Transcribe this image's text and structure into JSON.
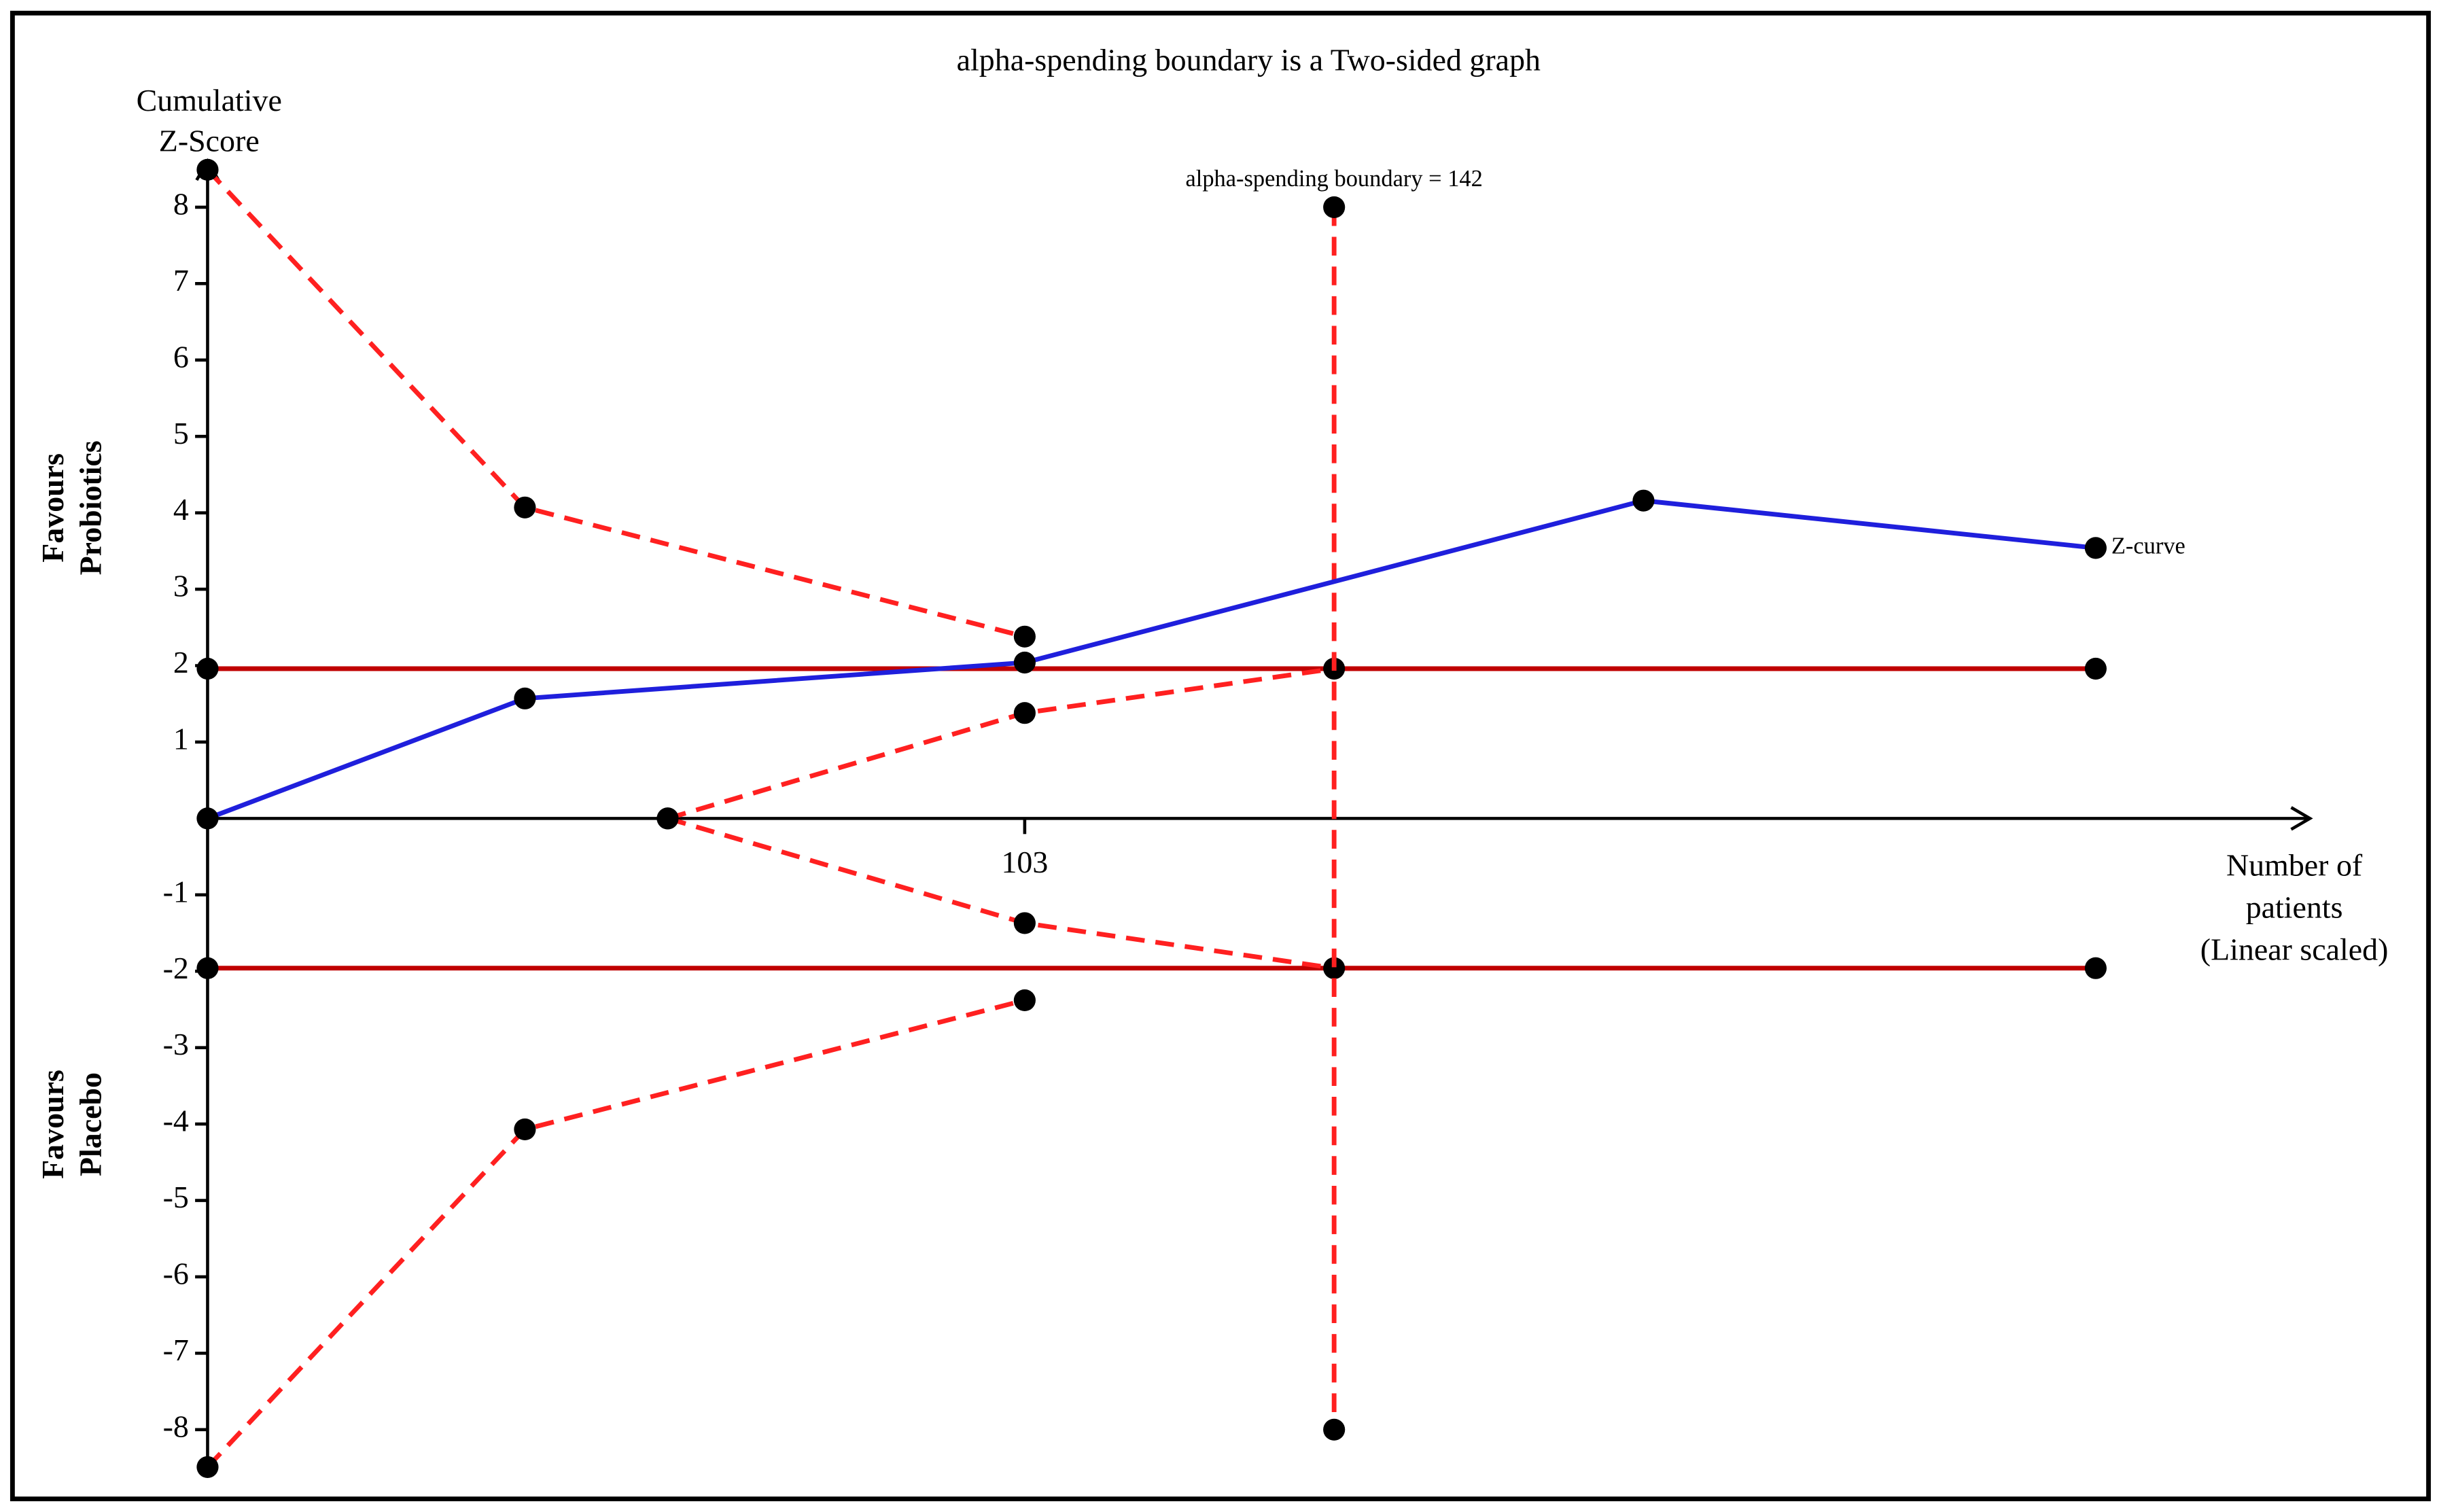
{
  "chart_data": {
    "type": "line",
    "title": "alpha-spending boundary is a Two-sided graph",
    "y_label": [
      "Cumulative",
      "Z-Score"
    ],
    "x_label": [
      "Number of",
      "patients",
      "(Linear scaled)"
    ],
    "upper_side_label": [
      "Favours",
      "Probiotics"
    ],
    "lower_side_label": [
      "Favours",
      "Placebo"
    ],
    "annotation": "alpha-spending boundary = 142",
    "xlim": [
      0,
      265
    ],
    "xticks": [
      103
    ],
    "ylim": [
      -8.6,
      8.6
    ],
    "yticks": [
      -8,
      -7,
      -6,
      -5,
      -4,
      -3,
      -2,
      -1,
      1,
      2,
      3,
      4,
      5,
      6,
      7,
      8
    ],
    "series": [
      {
        "color": "#c00000",
        "dashed": false,
        "x": [
          0,
          238
        ],
        "values": [
          1.96,
          1.96
        ]
      },
      {
        "color": "#c00000",
        "dashed": false,
        "x": [
          0,
          238
        ],
        "values": [
          -1.96,
          -1.96
        ]
      },
      {
        "color": "#ff2020",
        "dashed": true,
        "x": [
          0,
          40,
          103
        ],
        "values": [
          8.49,
          4.07,
          2.38
        ]
      },
      {
        "color": "#ff2020",
        "dashed": true,
        "x": [
          0,
          40,
          103
        ],
        "values": [
          -8.49,
          -4.07,
          -2.38
        ]
      },
      {
        "color": "#ff2020",
        "dashed": true,
        "x": [
          58,
          103,
          142
        ],
        "values": [
          0,
          1.38,
          1.96
        ]
      },
      {
        "color": "#ff2020",
        "dashed": true,
        "x": [
          58,
          103,
          142
        ],
        "values": [
          0,
          -1.37,
          -1.96
        ]
      },
      {
        "color": "#ff2020",
        "dashed": true,
        "x": [
          142,
          142
        ],
        "values": [
          8,
          -8
        ]
      },
      {
        "name": "Z-curve",
        "color": "#1f1fdc",
        "dashed": false,
        "x": [
          0,
          40,
          103,
          181,
          238
        ],
        "values": [
          0,
          1.57,
          2.04,
          4.16,
          3.54
        ]
      }
    ]
  }
}
